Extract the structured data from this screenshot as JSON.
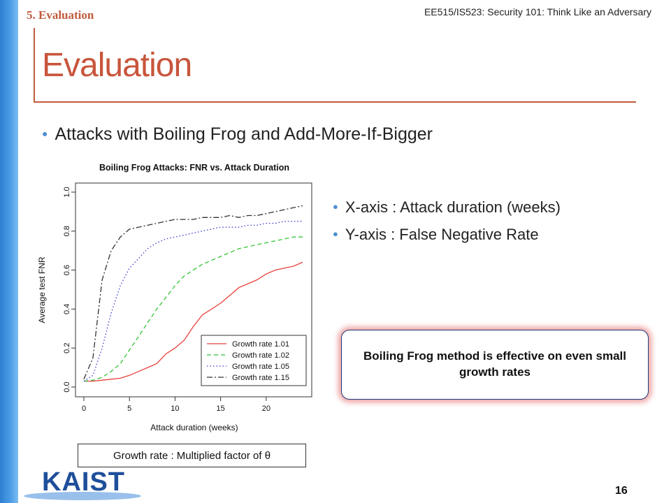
{
  "header": {
    "section_tag": "5. Evaluation",
    "course": "EE515/IS523: Security 101: Think Like an Adversary"
  },
  "slide": {
    "title": "Evaluation",
    "main_bullet": "Attacks with Boiling Frog and Add-More-If-Bigger",
    "right_bullets": [
      "X-axis : Attack duration (weeks)",
      "Y-axis : False Negative Rate"
    ],
    "callout": "Boiling Frog method is effective on even small growth rates",
    "note": "Growth rate : Multiplied factor of θ",
    "page_number": "16",
    "logo_text": "KAIST"
  },
  "colors": {
    "accent": "#c8553c",
    "sidebar": "#4a9be6",
    "logo": "#1f4f9a"
  },
  "chart_data": {
    "type": "line",
    "title": "Boiling Frog Attacks: FNR vs. Attack Duration",
    "xlabel": "Attack duration (weeks)",
    "ylabel": "Average test FNR",
    "xlim": [
      0,
      24
    ],
    "ylim": [
      0,
      1
    ],
    "xticks": [
      0,
      5,
      10,
      15,
      20
    ],
    "yticks": [
      0.0,
      0.2,
      0.4,
      0.6,
      0.8,
      1.0
    ],
    "ytick_labels": [
      "0.0",
      "0.2",
      "0.4",
      "0.6",
      "0.8",
      "1.0"
    ],
    "grid": false,
    "legend_position": "bottom-right",
    "x": [
      0,
      1,
      2,
      3,
      4,
      5,
      6,
      7,
      8,
      9,
      10,
      11,
      12,
      13,
      14,
      15,
      16,
      17,
      18,
      19,
      20,
      21,
      22,
      23,
      24
    ],
    "series": [
      {
        "name": "Growth rate 1.01",
        "color": "#e8413c",
        "dash": "solid",
        "values": [
          0.03,
          0.03,
          0.035,
          0.04,
          0.045,
          0.06,
          0.08,
          0.1,
          0.12,
          0.17,
          0.2,
          0.24,
          0.31,
          0.37,
          0.4,
          0.43,
          0.47,
          0.51,
          0.53,
          0.55,
          0.58,
          0.6,
          0.61,
          0.62,
          0.64
        ]
      },
      {
        "name": "Growth rate 1.02",
        "color": "#33c433",
        "dash": "dashed",
        "values": [
          0.03,
          0.035,
          0.05,
          0.08,
          0.12,
          0.19,
          0.26,
          0.33,
          0.4,
          0.46,
          0.52,
          0.57,
          0.6,
          0.63,
          0.65,
          0.67,
          0.69,
          0.71,
          0.72,
          0.73,
          0.74,
          0.75,
          0.76,
          0.77,
          0.77
        ]
      },
      {
        "name": "Growth rate 1.05",
        "color": "#3a3acc",
        "dash": "dotted",
        "values": [
          0.03,
          0.06,
          0.2,
          0.38,
          0.52,
          0.61,
          0.66,
          0.71,
          0.74,
          0.76,
          0.77,
          0.78,
          0.79,
          0.8,
          0.81,
          0.82,
          0.82,
          0.82,
          0.83,
          0.83,
          0.84,
          0.84,
          0.85,
          0.85,
          0.85
        ]
      },
      {
        "name": "Growth rate 1.15",
        "color": "#333333",
        "dash": "dashdot",
        "values": [
          0.04,
          0.15,
          0.55,
          0.7,
          0.77,
          0.81,
          0.82,
          0.83,
          0.84,
          0.85,
          0.86,
          0.86,
          0.86,
          0.87,
          0.87,
          0.87,
          0.88,
          0.87,
          0.88,
          0.88,
          0.89,
          0.9,
          0.91,
          0.92,
          0.93
        ]
      }
    ]
  }
}
